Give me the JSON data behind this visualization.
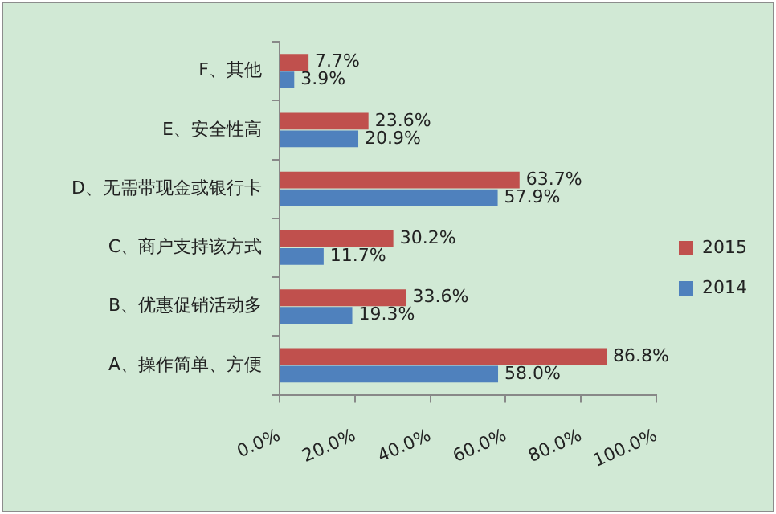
{
  "chart_data": {
    "type": "bar",
    "orientation": "horizontal",
    "categories": [
      "F、其他",
      "E、安全性高",
      "D、无需带现金或银行卡",
      "C、商户支持该方式",
      "B、优惠促销活动多",
      "A、操作简单、方便"
    ],
    "series": [
      {
        "name": "2015",
        "color": "#c0504d",
        "values": [
          7.7,
          23.6,
          63.7,
          30.2,
          33.6,
          86.8
        ],
        "value_labels": [
          "7.7%",
          "23.6%",
          "63.7%",
          "30.2%",
          "33.6%",
          "86.8%"
        ]
      },
      {
        "name": "2014",
        "color": "#4f81bd",
        "values": [
          3.9,
          20.9,
          57.9,
          11.7,
          19.3,
          58.0
        ],
        "value_labels": [
          "3.9%",
          "20.9%",
          "57.9%",
          "11.7%",
          "19.3%",
          "58.0%"
        ]
      }
    ],
    "xlim": [
      0,
      100
    ],
    "xticks": [
      {
        "value": 0,
        "label": "0.0%"
      },
      {
        "value": 20,
        "label": "20.0%"
      },
      {
        "value": 40,
        "label": "40.0%"
      },
      {
        "value": 60,
        "label": "60.0%"
      },
      {
        "value": 80,
        "label": "80.0%"
      },
      {
        "value": 100,
        "label": "100.0%"
      }
    ],
    "grid": false,
    "legend": "right"
  }
}
